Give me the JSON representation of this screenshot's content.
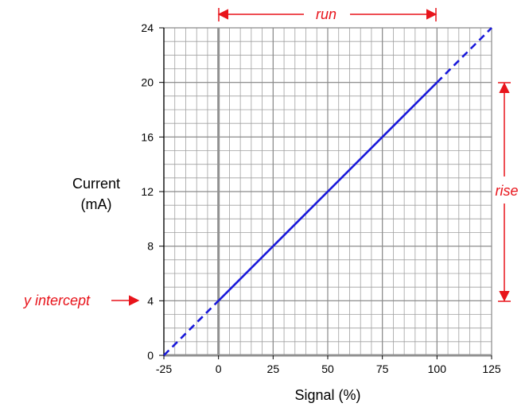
{
  "chart_data": {
    "type": "line",
    "title": "",
    "xlabel": "Signal (%)",
    "ylabel_line1": "Current",
    "ylabel_line2": "(mA)",
    "xlim": [
      -25,
      125
    ],
    "ylim": [
      0,
      24
    ],
    "x_ticks": [
      -25,
      0,
      25,
      50,
      75,
      100,
      125
    ],
    "y_ticks": [
      0,
      4,
      8,
      12,
      16,
      20,
      24
    ],
    "x_minor_step": 5,
    "y_minor_step": 1,
    "grid": true,
    "series": [
      {
        "style": "solid",
        "color": "#1a1adb",
        "x": [
          0,
          100
        ],
        "y": [
          4,
          20
        ]
      },
      {
        "style": "dashed",
        "color": "#1a1adb",
        "x": [
          -25,
          0
        ],
        "y": [
          0,
          4
        ]
      },
      {
        "style": "dashed",
        "color": "#1a1adb",
        "x": [
          100,
          125
        ],
        "y": [
          20,
          24
        ]
      }
    ],
    "annotations": {
      "run": {
        "label": "run",
        "x_from": 0,
        "x_to": 100
      },
      "rise": {
        "label": "rise",
        "y_from": 4,
        "y_to": 20
      },
      "y_intercept": {
        "label": "y intercept",
        "y": 4
      }
    },
    "colors": {
      "annotation": "#e8141b",
      "grid": "#a0a0a0",
      "zero_axis": "#909090"
    }
  }
}
